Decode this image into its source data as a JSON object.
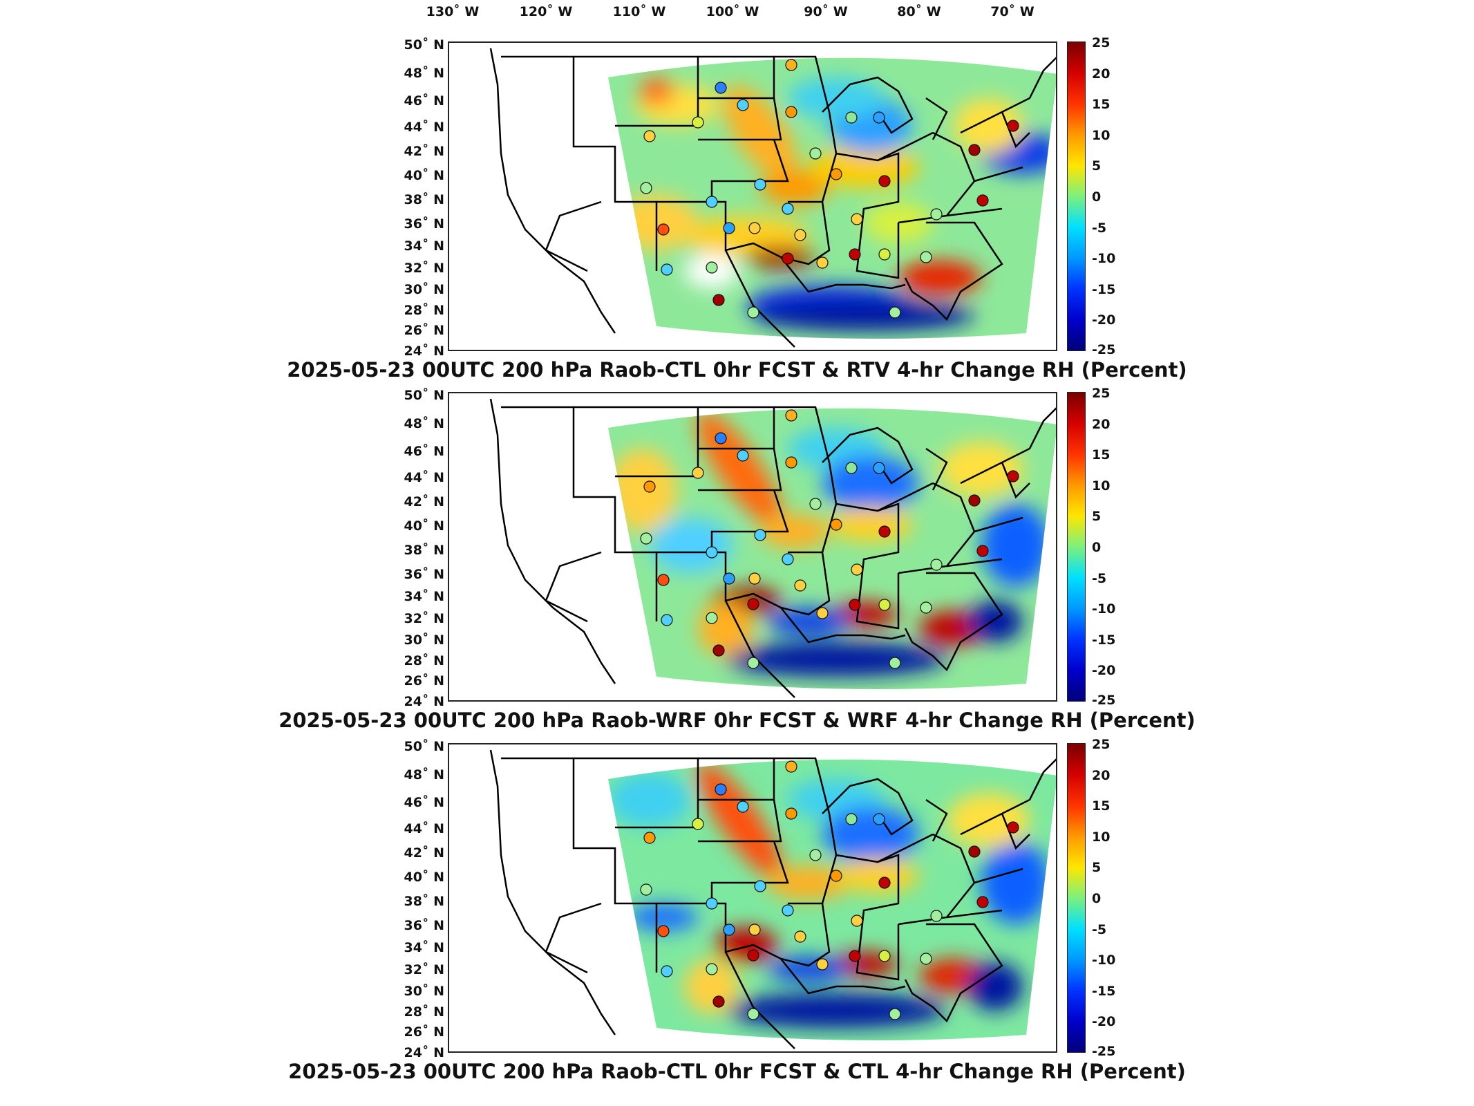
{
  "lon_labels": [
    "130˚ W",
    "120˚ W",
    "110˚ W",
    "100˚ W",
    "90˚ W",
    "80˚ W",
    "70˚ W"
  ],
  "lat_labels": [
    "50˚ N",
    "48˚ N",
    "46˚ N",
    "44˚ N",
    "42˚ N",
    "40˚ N",
    "38˚ N",
    "36˚ N",
    "34˚ N",
    "32˚ N",
    "30˚ N",
    "28˚ N",
    "26˚ N",
    "24˚ N"
  ],
  "colorbar": {
    "ticks": [
      "25",
      "20",
      "15",
      "10",
      "5",
      "0",
      "-5",
      "-10",
      "-15",
      "-20",
      "-25"
    ],
    "range": [
      -25,
      25
    ],
    "colors": [
      "#7a0000",
      "#d40000",
      "#ff3300",
      "#ff9900",
      "#ffe600",
      "#7df07d",
      "#00e0ff",
      "#0099ff",
      "#0033ff",
      "#0000cc",
      "#00007a"
    ]
  },
  "panels": [
    {
      "title": "2025-05-23 00UTC 200 hPa Raob-CTL 0hr FCST & RTV 4-hr Change RH (Percent)"
    },
    {
      "title": "2025-05-23 00UTC 200 hPa Raob-WRF 0hr FCST & WRF 4-hr Change RH (Percent)"
    },
    {
      "title": "2025-05-23 00UTC 200 hPa Raob-CTL 0hr FCST & CTL 4-hr Change RH (Percent)"
    }
  ]
}
